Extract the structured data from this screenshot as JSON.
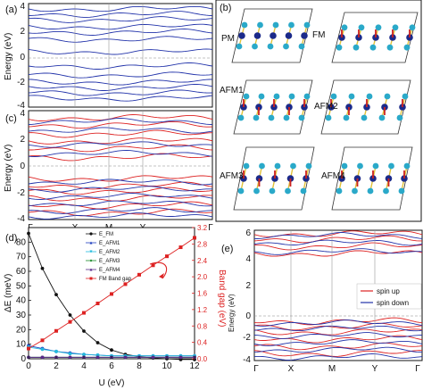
{
  "panels": {
    "a": {
      "label": "(a)",
      "ylabel": "Energy (eV)",
      "yticks": [
        "4",
        "2",
        "0",
        "-2",
        "-4"
      ],
      "line_color": "#2233aa"
    },
    "b": {
      "label": "(b)",
      "structures": [
        "PM",
        "FM",
        "AFM1",
        "AFM2",
        "AFM3",
        "AFM4"
      ]
    },
    "c": {
      "label": "(c)",
      "ylabel": "Energy (eV)",
      "yticks": [
        "4",
        "2",
        "0",
        "-2",
        "-4"
      ],
      "xticks": [
        "Γ",
        "X",
        "M",
        "Y",
        "Γ"
      ],
      "up_color": "#dd2222",
      "down_color": "#2233aa"
    },
    "d": {
      "label": "(d)",
      "ylabel_left": "ΔE (meV)",
      "ylabel_right": "Band gap (eV)",
      "xlabel": "U (eV)",
      "legend": [
        "E_FM",
        "E_AFM1",
        "E_AFM2",
        "E_AFM3",
        "E_AFM4",
        "FM Band gap"
      ]
    },
    "e": {
      "label": "(e)",
      "ylabel": "Energy (eV)",
      "yticks": [
        "6",
        "4",
        "2",
        "0",
        "-2",
        "-4"
      ],
      "xticks": [
        "Γ",
        "X",
        "M",
        "Y",
        "Γ"
      ],
      "legend_up": "spin up",
      "legend_down": "spin down"
    }
  },
  "chart_data": [
    {
      "type": "line",
      "x": [
        0,
        1,
        2,
        3,
        4,
        5,
        6,
        7,
        8,
        9,
        10,
        11,
        12
      ],
      "xlabel": "U (eV)",
      "ylabel": "ΔE (meV)",
      "xlim": [
        0,
        12
      ],
      "ylim": [
        0,
        90
      ],
      "yticks": [
        0,
        10,
        20,
        30,
        40,
        50,
        60,
        70,
        80
      ],
      "xticks": [
        0,
        2,
        4,
        6,
        8,
        10,
        12
      ],
      "series": [
        {
          "name": "E_FM",
          "color": "#111111",
          "values": [
            86,
            62,
            44,
            30,
            19,
            11,
            6,
            3,
            1.5,
            0.5,
            0,
            -0.5,
            -0.5
          ]
        },
        {
          "name": "E_AFM1",
          "color": "#1f3fbf",
          "values": [
            9,
            7,
            5,
            4,
            3,
            2.5,
            2,
            2,
            2,
            2,
            2,
            2,
            2
          ]
        },
        {
          "name": "E_AFM2",
          "color": "#22bbdd",
          "values": [
            8,
            6.5,
            5,
            3.5,
            3,
            2.5,
            2,
            2,
            2,
            2,
            2,
            2,
            2
          ]
        },
        {
          "name": "E_AFM3",
          "color": "#1a8a2a",
          "values": [
            1,
            1,
            1,
            1,
            1,
            1,
            1,
            1,
            1,
            1,
            1,
            1,
            1
          ]
        },
        {
          "name": "E_AFM4",
          "color": "#5a2a8a",
          "values": [
            1,
            1,
            1,
            1,
            1,
            1,
            1,
            1,
            1,
            1,
            1,
            1,
            1
          ]
        }
      ]
    },
    {
      "type": "line",
      "x": [
        0,
        1,
        2,
        3,
        4,
        5,
        6,
        7,
        8,
        9,
        10,
        11,
        12
      ],
      "ylabel": "Band gap (eV)",
      "ylim": [
        0,
        3.2
      ],
      "yticks": [
        0.0,
        0.4,
        0.8,
        1.2,
        1.6,
        2.0,
        2.4,
        2.8,
        3.2
      ],
      "series": [
        {
          "name": "FM Band gap",
          "color": "#dd2222",
          "values": [
            0.25,
            0.45,
            0.68,
            0.9,
            1.12,
            1.35,
            1.58,
            1.82,
            2.05,
            2.28,
            2.5,
            2.72,
            2.95
          ]
        }
      ]
    }
  ]
}
